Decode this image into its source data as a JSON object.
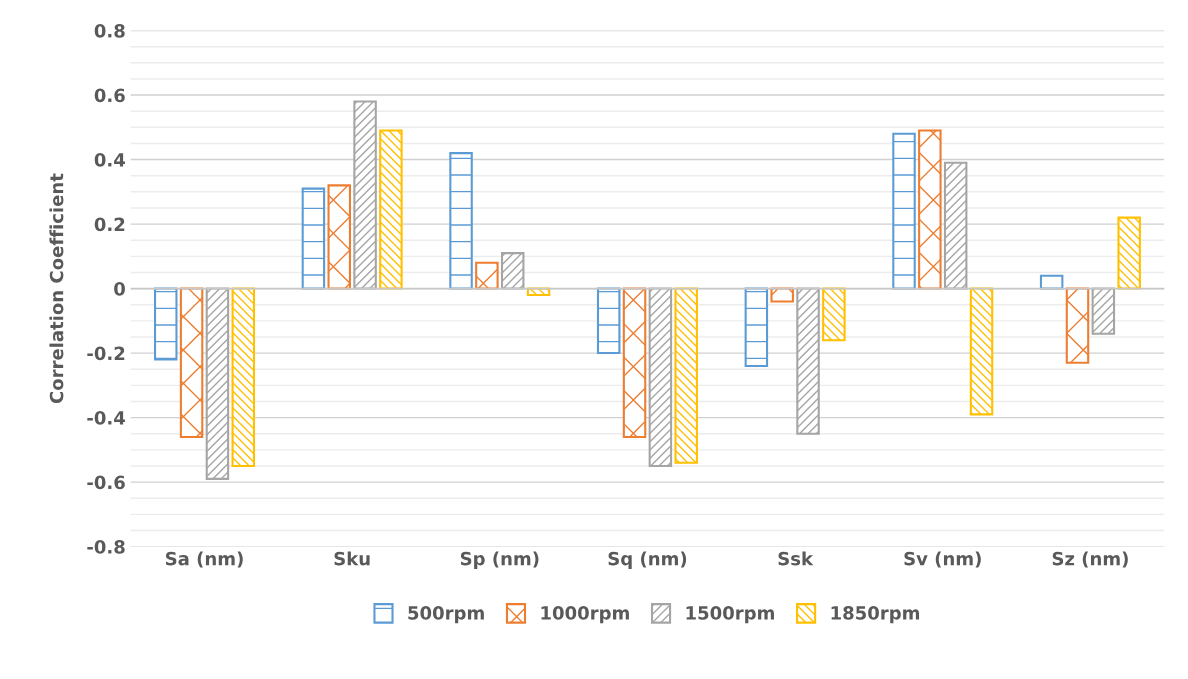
{
  "chart_data": {
    "type": "bar",
    "ylabel": "Correlation Coefficient",
    "categories": [
      "Sa (nm)",
      "Sku",
      "Sp (nm)",
      "Sq (nm)",
      "Ssk",
      "Sv (nm)",
      "Sz (nm)"
    ],
    "series": [
      {
        "name": "500rpm",
        "color": "#5b9bd5",
        "values": [
          -0.22,
          0.31,
          0.42,
          -0.2,
          -0.24,
          0.48,
          0.04
        ]
      },
      {
        "name": "1000rpm",
        "color": "#ed7d31",
        "values": [
          -0.46,
          0.32,
          0.08,
          -0.46,
          -0.04,
          0.49,
          -0.23
        ]
      },
      {
        "name": "1500rpm",
        "color": "#a5a5a5",
        "values": [
          -0.59,
          0.58,
          0.11,
          -0.55,
          -0.45,
          0.39,
          -0.14
        ]
      },
      {
        "name": "1850rpm",
        "color": "#ffc000",
        "values": [
          -0.55,
          0.49,
          -0.02,
          -0.54,
          -0.16,
          -0.39,
          0.22
        ]
      }
    ],
    "ylim": [
      -0.8,
      0.8
    ],
    "yticks": [
      -0.8,
      {
        "value": -0.75,
        "label": null
      },
      {
        "value": -0.7,
        "label": null
      },
      {
        "value": -0.65,
        "label": null
      },
      -0.6,
      {
        "value": -0.55,
        "label": null
      },
      {
        "value": -0.5,
        "label": null
      },
      {
        "value": -0.45,
        "label": null
      },
      -0.4,
      {
        "value": -0.35,
        "label": null
      },
      {
        "value": -0.3,
        "label": null
      },
      {
        "value": -0.25,
        "label": null
      },
      -0.2,
      {
        "value": -0.15,
        "label": null
      },
      {
        "value": -0.1,
        "label": null
      },
      {
        "value": -0.05,
        "label": null
      },
      0,
      {
        "value": 0.05,
        "label": null
      },
      {
        "value": 0.1,
        "label": null
      },
      {
        "value": 0.15,
        "label": null
      },
      0.2,
      {
        "value": 0.25,
        "label": null
      },
      {
        "value": 0.3,
        "label": null
      },
      {
        "value": 0.35,
        "label": null
      },
      0.4,
      {
        "value": 0.45,
        "label": null
      },
      {
        "value": 0.5,
        "label": null
      },
      {
        "value": 0.55,
        "label": null
      },
      0.6,
      {
        "value": 0.65,
        "label": null
      },
      {
        "value": 0.7,
        "label": null
      },
      {
        "value": 0.75,
        "label": null
      },
      0.8
    ],
    "grid": "y",
    "legend": "bottom"
  }
}
